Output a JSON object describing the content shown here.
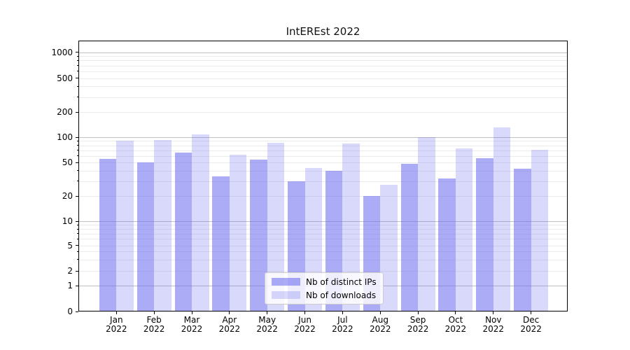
{
  "chart_data": {
    "type": "bar",
    "title": "IntEREst 2022",
    "x_year": "2022",
    "categories": [
      "Jan",
      "Feb",
      "Mar",
      "Apr",
      "May",
      "Jun",
      "Jul",
      "Aug",
      "Sep",
      "Oct",
      "Nov",
      "Dec"
    ],
    "series": [
      {
        "key": "distinct-ips",
        "name": "Nb of distinct IPs",
        "color": "rgba(102,102,238,0.55)",
        "values": [
          55,
          50,
          66,
          34,
          54,
          30,
          40,
          20,
          48,
          32,
          56,
          42
        ]
      },
      {
        "key": "downloads",
        "name": "Nb of downloads",
        "color": "rgba(102,102,238,0.25)",
        "values": [
          90,
          92,
          107,
          62,
          85,
          43,
          84,
          27,
          100,
          74,
          131,
          71
        ]
      }
    ],
    "y_axis": {
      "scale": "symlog",
      "ticks": [
        1000,
        500,
        200,
        100,
        50,
        20,
        10,
        5,
        2,
        1,
        0
      ],
      "range": [
        0,
        1400
      ]
    },
    "grid": true,
    "legend": {
      "position": "inside-bottom-center"
    },
    "colors": {
      "bar_base": "#6666ee"
    }
  }
}
